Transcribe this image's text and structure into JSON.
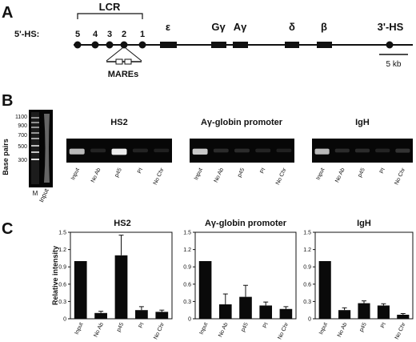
{
  "panel_a": {
    "letter": "A",
    "hs_prefix": "5'-HS:",
    "hs_sites": [
      "5",
      "4",
      "3",
      "2",
      "1"
    ],
    "lcr_label": "LCR",
    "genes": [
      "ε",
      "Gγ",
      "Aγ",
      "δ",
      "β"
    ],
    "hs3_label": "3'-HS",
    "mares_label": "MAREs",
    "scale_label": "5 kb"
  },
  "panel_b": {
    "letter": "B",
    "yaxis_label": "Base pairs",
    "marker_sizes": [
      "1100",
      "900",
      "700",
      "500",
      "300"
    ],
    "marker_lane_labels": [
      "M",
      "Input"
    ],
    "lane_labels": [
      "Input",
      "No Ab",
      "p45",
      "PI",
      "No Chr"
    ],
    "gels": [
      {
        "title": "HS2",
        "band_intensity": [
          0.8,
          0.15,
          0.95,
          0.15,
          0.12
        ]
      },
      {
        "title": "Aγ-globin promoter",
        "band_intensity": [
          0.85,
          0.2,
          0.2,
          0.15,
          0.12
        ]
      },
      {
        "title": "IgH",
        "band_intensity": [
          0.8,
          0.2,
          0.2,
          0.15,
          0.25
        ]
      }
    ]
  },
  "panel_c": {
    "letter": "C",
    "ylabel": "Relative intensity",
    "yticks": [
      "0",
      "0.3",
      "0.6",
      "0.9",
      "1.2",
      "1.5"
    ]
  },
  "chart_data": [
    {
      "type": "bar",
      "title": "HS2",
      "categories": [
        "Input",
        "No Ab",
        "p45",
        "PI",
        "No Chr"
      ],
      "values": [
        1.0,
        0.1,
        1.1,
        0.15,
        0.12
      ],
      "errors": [
        0,
        0.03,
        0.35,
        0.06,
        0.03
      ],
      "ylabel": "Relative intensity",
      "ylim": [
        0,
        1.5
      ]
    },
    {
      "type": "bar",
      "title": "Aγ-globin promoter",
      "categories": [
        "Input",
        "No Ab",
        "p45",
        "PI",
        "No Chr"
      ],
      "values": [
        1.0,
        0.25,
        0.38,
        0.23,
        0.17
      ],
      "errors": [
        0,
        0.18,
        0.2,
        0.06,
        0.04
      ],
      "ylim": [
        0,
        1.5
      ]
    },
    {
      "type": "bar",
      "title": "IgH",
      "categories": [
        "Input",
        "No Ab",
        "p45",
        "PI",
        "No Chr"
      ],
      "values": [
        1.0,
        0.15,
        0.27,
        0.23,
        0.07
      ],
      "errors": [
        0,
        0.04,
        0.04,
        0.03,
        0.02
      ],
      "ylim": [
        0,
        1.5
      ]
    }
  ]
}
